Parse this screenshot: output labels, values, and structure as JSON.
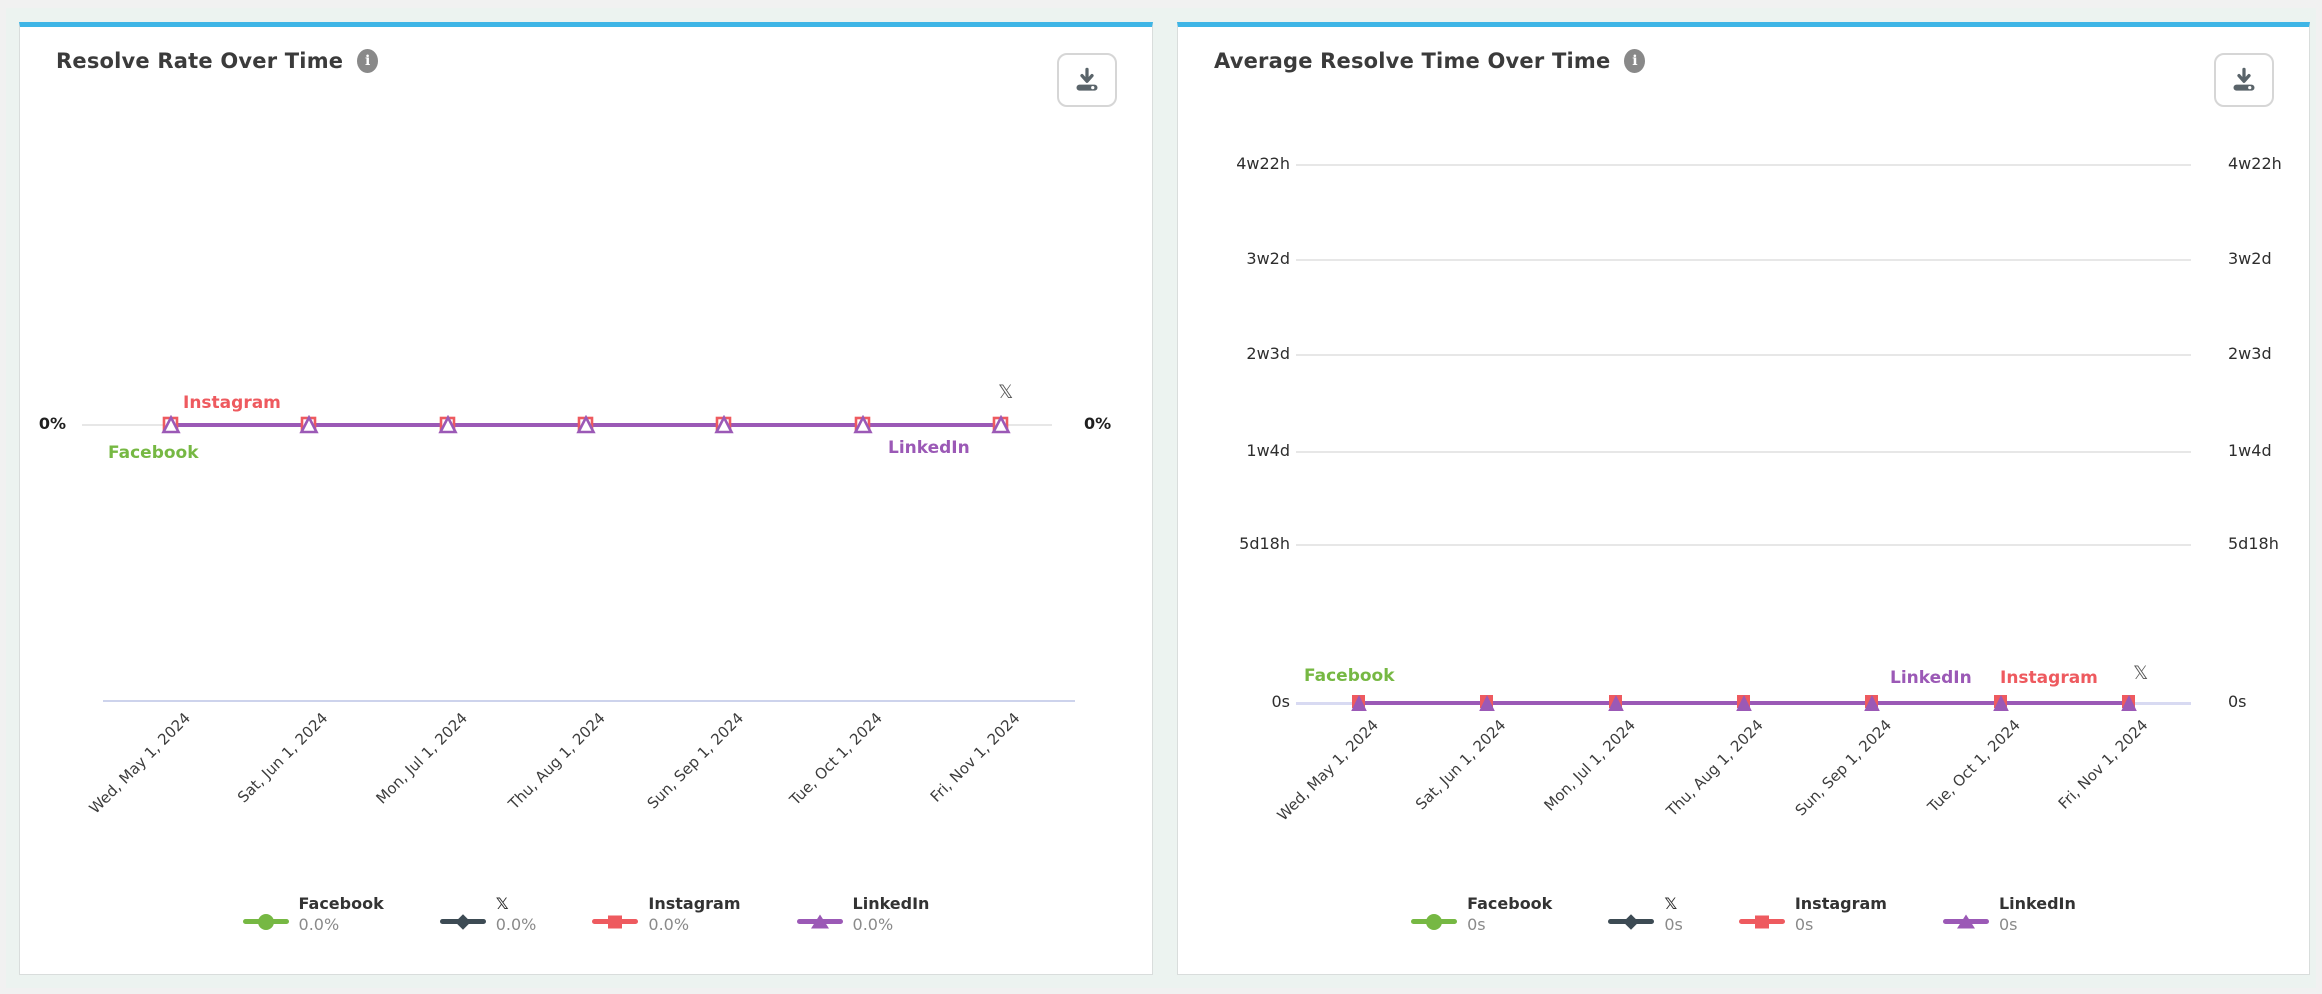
{
  "icons": {
    "info": "i"
  },
  "panels": [
    {
      "title": "Resolve Rate Over Time",
      "chart_data": {
        "type": "line",
        "x": [
          "Wed, May 1, 2024",
          "Sat, Jun 1, 2024",
          "Mon, Jul 1, 2024",
          "Thu, Aug 1, 2024",
          "Sun, Sep 1, 2024",
          "Tue, Oct 1, 2024",
          "Fri, Nov 1, 2024"
        ],
        "yticks": [
          "0%"
        ],
        "yticks_on_both_sides": true,
        "grid": true,
        "legend_position": "bottom",
        "series": [
          {
            "name": "Facebook",
            "color": "#76b843",
            "marker": "circle",
            "values": [
              0,
              0,
              0,
              0,
              0,
              0,
              0
            ],
            "value_label": "0.0%"
          },
          {
            "name": "𝕏",
            "color": "#3d4b54",
            "marker": "diamond",
            "values": [
              0,
              0,
              0,
              0,
              0,
              0,
              0
            ],
            "value_label": "0.0%"
          },
          {
            "name": "Instagram",
            "color": "#ee5a5f",
            "marker": "square",
            "values": [
              0,
              0,
              0,
              0,
              0,
              0,
              0
            ],
            "value_label": "0.0%"
          },
          {
            "name": "LinkedIn",
            "color": "#9b59b6",
            "marker": "triangle",
            "values": [
              0,
              0,
              0,
              0,
              0,
              0,
              0
            ],
            "value_label": "0.0%"
          }
        ]
      }
    },
    {
      "title": "Average Resolve Time Over Time",
      "chart_data": {
        "type": "line",
        "x": [
          "Wed, May 1, 2024",
          "Sat, Jun 1, 2024",
          "Mon, Jul 1, 2024",
          "Thu, Aug 1, 2024",
          "Sun, Sep 1, 2024",
          "Tue, Oct 1, 2024",
          "Fri, Nov 1, 2024"
        ],
        "yticks": [
          "4w22h",
          "3w2d",
          "2w3d",
          "1w4d",
          "5d18h",
          "0s"
        ],
        "yticks_on_both_sides": true,
        "grid": true,
        "legend_position": "bottom",
        "series": [
          {
            "name": "Facebook",
            "color": "#76b843",
            "marker": "circle",
            "values": [
              0,
              0,
              0,
              0,
              0,
              0,
              0
            ],
            "value_label": "0s"
          },
          {
            "name": "𝕏",
            "color": "#3d4b54",
            "marker": "diamond",
            "values": [
              0,
              0,
              0,
              0,
              0,
              0,
              0
            ],
            "value_label": "0s"
          },
          {
            "name": "Instagram",
            "color": "#ee5a5f",
            "marker": "square",
            "values": [
              0,
              0,
              0,
              0,
              0,
              0,
              0
            ],
            "value_label": "0s"
          },
          {
            "name": "LinkedIn",
            "color": "#9b59b6",
            "marker": "triangle",
            "values": [
              0,
              0,
              0,
              0,
              0,
              0,
              0
            ],
            "value_label": "0s"
          }
        ]
      }
    }
  ]
}
